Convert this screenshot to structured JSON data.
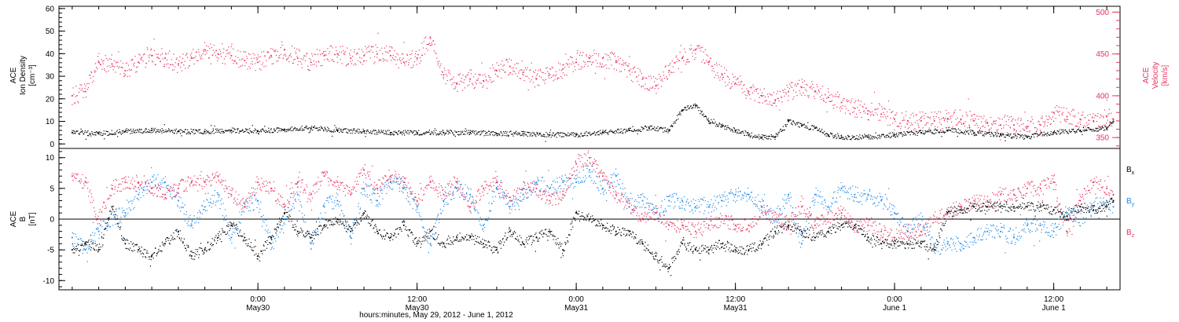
{
  "colors": {
    "density": "#000000",
    "velocity": "#e8325f",
    "bx": "#000000",
    "by": "#1e88e5",
    "bz": "#e8325f",
    "axes": "#000000"
  },
  "x_axis": {
    "title": "hours:minutes, May 29, 2012 - June  1, 2012",
    "range_hours": [
      -15,
      65
    ],
    "ticks": [
      {
        "hours": 0,
        "time": "0:00",
        "date": "May30"
      },
      {
        "hours": 12,
        "time": "12:00",
        "date": "May30"
      },
      {
        "hours": 24,
        "time": "0:00",
        "date": "May31"
      },
      {
        "hours": 36,
        "time": "12:00",
        "date": "May31"
      },
      {
        "hours": 48,
        "time": "0:00",
        "date": "June 1"
      },
      {
        "hours": 60,
        "time": "12:00",
        "date": "June 1"
      }
    ]
  },
  "top_panel": {
    "left_axis": {
      "label_lines": [
        "ACE",
        "Ion Density",
        "[cm⁻³]"
      ],
      "range": [
        -2,
        61
      ],
      "ticks": [
        0,
        10,
        20,
        30,
        40,
        50,
        60
      ]
    },
    "right_axis": {
      "label_lines": [
        "ACE",
        "Velocity",
        "[km/s]"
      ],
      "range": [
        337,
        507
      ],
      "ticks": [
        350,
        400,
        450,
        500
      ]
    }
  },
  "bottom_panel": {
    "left_axis": {
      "label_lines": [
        "ACE",
        "B",
        "[nT]"
      ],
      "range": [
        -11.5,
        11.5
      ],
      "ticks": [
        -10,
        -5,
        0,
        5,
        10
      ]
    },
    "legend": [
      {
        "label": "B",
        "sub": "x",
        "color": "#000000"
      },
      {
        "label": "B",
        "sub": "y",
        "color": "#1e88e5"
      },
      {
        "label": "B",
        "sub": "z",
        "color": "#e8325f"
      }
    ],
    "zero_line": 0
  },
  "chart_data": [
    {
      "type": "scatter",
      "title": "",
      "x_unit": "hours from 2012-05-30 00:00",
      "series": [
        {
          "axis": "left",
          "color": "#000000",
          "x": [
            -14,
            -12,
            -10,
            -8,
            -6,
            -4,
            -2,
            0,
            2,
            4,
            6,
            8,
            10,
            12,
            14,
            16,
            18,
            20,
            22,
            24,
            26,
            28,
            29.5,
            31,
            32,
            33,
            34,
            35,
            36,
            37,
            38,
            39,
            40,
            41,
            42,
            43,
            44,
            46,
            48,
            50,
            52,
            54,
            56,
            58,
            60,
            62,
            64,
            64.5
          ],
          "y": [
            5,
            4.5,
            5.5,
            6,
            5.5,
            5.5,
            6,
            5.5,
            6.5,
            7,
            6,
            5.5,
            5,
            5,
            5,
            5,
            4.5,
            4.5,
            4,
            4,
            5,
            6,
            7,
            6,
            15,
            17,
            10,
            8,
            6,
            4,
            3,
            3,
            10,
            8,
            7,
            4,
            3,
            3,
            4,
            5,
            6,
            5,
            4,
            3,
            5,
            6,
            7,
            10
          ]
        },
        {
          "axis": "right",
          "color": "#e8325f",
          "x": [
            -14,
            -13,
            -12,
            -11,
            -10,
            -9,
            -8,
            -7,
            -6,
            -5,
            -4,
            -3,
            -2,
            -1,
            0,
            1,
            2,
            3,
            4,
            5,
            6,
            7,
            8,
            9,
            10,
            11,
            12,
            13,
            14,
            15,
            16,
            17,
            18,
            19,
            20,
            21,
            22,
            23,
            24,
            25,
            26,
            27,
            28,
            29,
            30,
            31,
            32,
            33,
            34,
            35,
            36,
            37,
            38,
            39,
            40,
            41,
            42,
            43,
            44,
            45,
            46,
            47,
            48,
            49,
            50,
            51,
            52,
            53,
            54,
            55,
            56,
            57,
            58,
            59,
            60,
            61,
            62,
            63,
            64,
            64.5
          ],
          "y": [
            400,
            405,
            440,
            438,
            430,
            440,
            448,
            445,
            438,
            445,
            455,
            450,
            448,
            442,
            440,
            448,
            455,
            445,
            440,
            448,
            450,
            445,
            448,
            450,
            448,
            440,
            445,
            470,
            425,
            415,
            420,
            418,
            430,
            435,
            428,
            420,
            425,
            432,
            440,
            445,
            445,
            440,
            430,
            420,
            412,
            430,
            445,
            455,
            440,
            425,
            415,
            405,
            400,
            395,
            405,
            410,
            405,
            398,
            392,
            385,
            382,
            378,
            372,
            370,
            370,
            370,
            372,
            372,
            370,
            368,
            365,
            365,
            363,
            365,
            380,
            375,
            372,
            370,
            375,
            372
          ]
        }
      ]
    },
    {
      "type": "scatter",
      "title": "",
      "x_unit": "hours from 2012-05-30 00:00",
      "series": [
        {
          "name": "Bx",
          "color": "#000000",
          "x": [
            -14,
            -13,
            -12,
            -11,
            -10,
            -9,
            -8,
            -7,
            -6,
            -5,
            -4,
            -3,
            -2,
            -1,
            0,
            1,
            2,
            3,
            4,
            5,
            6,
            7,
            8,
            9,
            10,
            11,
            12,
            13,
            14,
            15,
            16,
            17,
            18,
            19,
            20,
            21,
            22,
            23,
            24,
            25,
            26,
            27,
            28,
            29,
            30,
            31,
            32,
            33,
            34,
            35,
            36,
            37,
            38,
            39,
            40,
            41,
            42,
            43,
            44,
            45,
            46,
            47,
            48,
            49,
            50,
            51,
            52,
            53,
            54,
            55,
            56,
            57,
            58,
            59,
            60,
            61,
            62,
            63,
            64,
            64.5
          ],
          "y": [
            -5,
            -4,
            -5,
            2,
            -4,
            -5,
            -6,
            -4,
            -2,
            -6,
            -5,
            -3,
            -1,
            -3,
            -6,
            -3,
            1,
            -2,
            -3,
            -1,
            0,
            -2,
            1,
            -2,
            -3,
            -1,
            -4,
            -2,
            -4,
            -3,
            -3,
            -4,
            -5,
            -2,
            -4,
            -3,
            -2,
            -5,
            1,
            0,
            -1,
            -2,
            -2,
            -4,
            -6,
            -8,
            -4,
            -5,
            -5,
            -4,
            -5,
            -5,
            -4,
            -2,
            -1,
            -2,
            -3,
            -2,
            -1,
            -1,
            -3,
            -4,
            -4,
            -4,
            -4,
            -5,
            1,
            1.5,
            2,
            2,
            2,
            2,
            2,
            2,
            1.5,
            0.5,
            2,
            1.5,
            2,
            3
          ]
        },
        {
          "name": "By",
          "color": "#1e88e5",
          "x": [
            -14,
            -13,
            -12,
            -11,
            -10,
            -9,
            -8,
            -7,
            -6,
            -5,
            -4,
            -3,
            -2,
            -1,
            0,
            1,
            2,
            3,
            4,
            5,
            6,
            7,
            8,
            9,
            10,
            11,
            12,
            13,
            14,
            15,
            16,
            17,
            18,
            19,
            20,
            21,
            22,
            23,
            24,
            25,
            26,
            27,
            28,
            29,
            30,
            31,
            32,
            33,
            34,
            35,
            36,
            37,
            38,
            39,
            40,
            41,
            42,
            43,
            44,
            45,
            46,
            47,
            48,
            49,
            50,
            51,
            52,
            53,
            54,
            55,
            56,
            57,
            58,
            59,
            60,
            61,
            62,
            63,
            64,
            64.5
          ],
          "y": [
            -3,
            -5,
            -2,
            0,
            1,
            4,
            6,
            6,
            3,
            -1,
            2,
            4,
            -3,
            2,
            3,
            -4,
            0,
            4,
            -4,
            2,
            3,
            -3,
            5,
            3,
            6,
            5,
            2,
            -4,
            3,
            5,
            4,
            -1,
            5,
            2,
            4,
            6,
            5,
            6,
            6,
            8,
            5,
            7,
            2,
            3,
            1,
            3,
            3,
            2,
            2,
            3,
            4,
            4,
            2,
            0,
            4,
            -4,
            4,
            2,
            5,
            4,
            4,
            3,
            1,
            -2,
            0,
            -5,
            -4,
            -4,
            -3,
            -2,
            -2,
            -3,
            -1,
            -1,
            -2,
            1,
            0,
            2,
            3,
            2
          ]
        },
        {
          "name": "Bz",
          "color": "#e8325f",
          "x": [
            -14,
            -13,
            -12,
            -11,
            -10,
            -9,
            -8,
            -7,
            -6,
            -5,
            -4,
            -3,
            -2,
            -1,
            0,
            1,
            2,
            3,
            4,
            5,
            6,
            7,
            8,
            9,
            10,
            11,
            12,
            13,
            14,
            15,
            16,
            17,
            18,
            19,
            20,
            21,
            22,
            23,
            24,
            25,
            26,
            27,
            28,
            29,
            30,
            31,
            32,
            33,
            34,
            35,
            36,
            37,
            38,
            39,
            40,
            41,
            42,
            43,
            44,
            45,
            46,
            47,
            48,
            49,
            50,
            51,
            52,
            53,
            54,
            55,
            56,
            57,
            58,
            59,
            60,
            61,
            62,
            63,
            64,
            64.5
          ],
          "y": [
            7,
            6,
            0,
            5,
            6,
            6,
            5,
            4,
            5,
            6,
            6,
            7,
            4,
            2,
            6,
            5,
            2,
            6,
            4,
            7,
            6,
            4,
            8,
            5,
            7,
            6,
            3,
            6,
            4,
            6,
            2,
            5,
            6,
            3,
            5,
            5,
            3,
            4,
            9,
            10,
            7,
            4,
            2,
            0,
            1,
            -1,
            -1,
            -2,
            -1,
            0,
            -1,
            -1,
            1,
            0,
            -1,
            2,
            -1,
            0,
            1,
            -1,
            -1,
            -2,
            -3,
            -2,
            -2,
            0,
            1,
            2,
            3,
            3,
            4,
            4,
            5,
            5,
            6,
            -2,
            3,
            6,
            5,
            4
          ]
        }
      ]
    }
  ]
}
